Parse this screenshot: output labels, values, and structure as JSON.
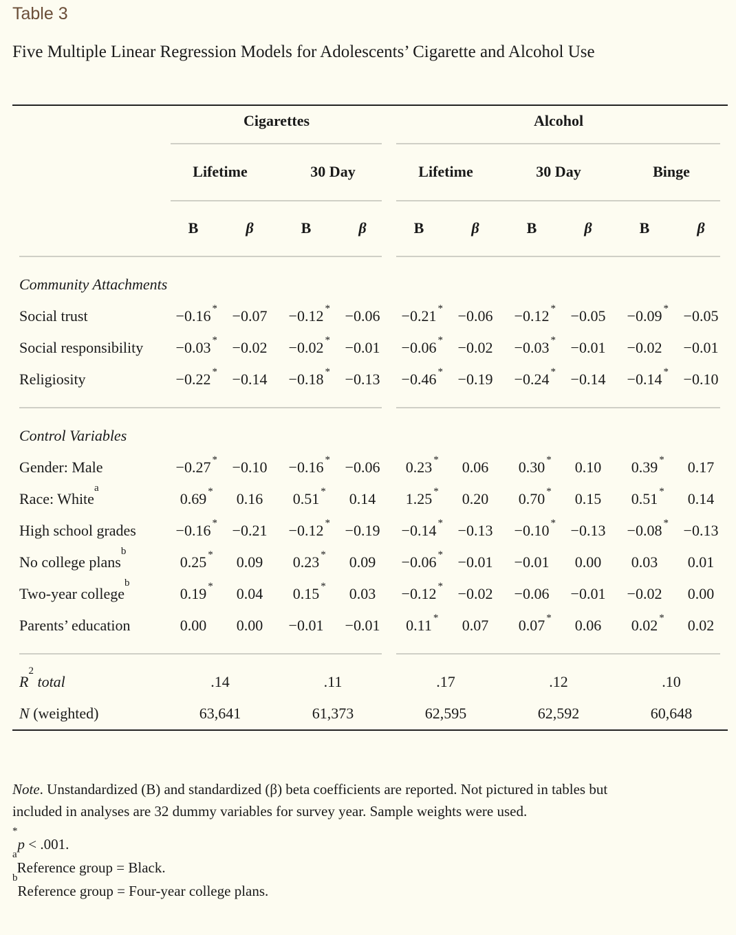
{
  "label": "Table 3",
  "title": "Five Multiple Linear Regression Models for Adolescents’ Cigarette and Alcohol Use",
  "groups": [
    "Cigarettes",
    "Alcohol"
  ],
  "outcomes": [
    "Lifetime",
    "30 Day",
    "Lifetime",
    "30 Day",
    "Binge"
  ],
  "coef_labels": [
    "B",
    "β"
  ],
  "sections": [
    {
      "title": "Community Attachments",
      "rows": [
        {
          "label": "Social trust",
          "sup": "",
          "cells": [
            {
              "v": "−0.16",
              "s": true
            },
            {
              "v": "−0.07",
              "s": false
            },
            {
              "v": "−0.12",
              "s": true
            },
            {
              "v": "−0.06",
              "s": false
            },
            {
              "v": "−0.21",
              "s": true
            },
            {
              "v": "−0.06",
              "s": false
            },
            {
              "v": "−0.12",
              "s": true
            },
            {
              "v": "−0.05",
              "s": false
            },
            {
              "v": "−0.09",
              "s": true
            },
            {
              "v": "−0.05",
              "s": false
            }
          ]
        },
        {
          "label": "Social responsibility",
          "sup": "",
          "cells": [
            {
              "v": "−0.03",
              "s": true
            },
            {
              "v": "−0.02",
              "s": false
            },
            {
              "v": "−0.02",
              "s": true
            },
            {
              "v": "−0.01",
              "s": false
            },
            {
              "v": "−0.06",
              "s": true
            },
            {
              "v": "−0.02",
              "s": false
            },
            {
              "v": "−0.03",
              "s": true
            },
            {
              "v": "−0.01",
              "s": false
            },
            {
              "v": "−0.02",
              "s": false
            },
            {
              "v": "−0.01",
              "s": false
            }
          ]
        },
        {
          "label": "Religiosity",
          "sup": "",
          "cells": [
            {
              "v": "−0.22",
              "s": true
            },
            {
              "v": "−0.14",
              "s": false
            },
            {
              "v": "−0.18",
              "s": true
            },
            {
              "v": "−0.13",
              "s": false
            },
            {
              "v": "−0.46",
              "s": true
            },
            {
              "v": "−0.19",
              "s": false
            },
            {
              "v": "−0.24",
              "s": true
            },
            {
              "v": "−0.14",
              "s": false
            },
            {
              "v": "−0.14",
              "s": true
            },
            {
              "v": "−0.10",
              "s": false
            }
          ]
        }
      ]
    },
    {
      "title": "Control Variables",
      "rows": [
        {
          "label": "Gender: Male",
          "sup": "",
          "cells": [
            {
              "v": "−0.27",
              "s": true
            },
            {
              "v": "−0.10",
              "s": false
            },
            {
              "v": "−0.16",
              "s": true
            },
            {
              "v": "−0.06",
              "s": false
            },
            {
              "v": "0.23",
              "s": true
            },
            {
              "v": "0.06",
              "s": false
            },
            {
              "v": "0.30",
              "s": true
            },
            {
              "v": "0.10",
              "s": false
            },
            {
              "v": "0.39",
              "s": true
            },
            {
              "v": "0.17",
              "s": false
            }
          ]
        },
        {
          "label": "Race: White",
          "sup": "a",
          "cells": [
            {
              "v": "0.69",
              "s": true
            },
            {
              "v": "0.16",
              "s": false
            },
            {
              "v": "0.51",
              "s": true
            },
            {
              "v": "0.14",
              "s": false
            },
            {
              "v": "1.25",
              "s": true
            },
            {
              "v": "0.20",
              "s": false
            },
            {
              "v": "0.70",
              "s": true
            },
            {
              "v": "0.15",
              "s": false
            },
            {
              "v": "0.51",
              "s": true
            },
            {
              "v": "0.14",
              "s": false
            }
          ]
        },
        {
          "label": "High school grades",
          "sup": "",
          "cells": [
            {
              "v": "−0.16",
              "s": true
            },
            {
              "v": "−0.21",
              "s": false
            },
            {
              "v": "−0.12",
              "s": true
            },
            {
              "v": "−0.19",
              "s": false
            },
            {
              "v": "−0.14",
              "s": true
            },
            {
              "v": "−0.13",
              "s": false
            },
            {
              "v": "−0.10",
              "s": true
            },
            {
              "v": "−0.13",
              "s": false
            },
            {
              "v": "−0.08",
              "s": true
            },
            {
              "v": "−0.13",
              "s": false
            }
          ]
        },
        {
          "label": "No college plans",
          "sup": "b",
          "cells": [
            {
              "v": "0.25",
              "s": true
            },
            {
              "v": "0.09",
              "s": false
            },
            {
              "v": "0.23",
              "s": true
            },
            {
              "v": "0.09",
              "s": false
            },
            {
              "v": "−0.06",
              "s": true
            },
            {
              "v": "−0.01",
              "s": false
            },
            {
              "v": "−0.01",
              "s": false
            },
            {
              "v": "0.00",
              "s": false
            },
            {
              "v": "0.03",
              "s": false
            },
            {
              "v": "0.01",
              "s": false
            }
          ]
        },
        {
          "label": "Two-year college",
          "sup": "b",
          "cells": [
            {
              "v": "0.19",
              "s": true
            },
            {
              "v": "0.04",
              "s": false
            },
            {
              "v": "0.15",
              "s": true
            },
            {
              "v": "0.03",
              "s": false
            },
            {
              "v": "−0.12",
              "s": true
            },
            {
              "v": "−0.02",
              "s": false
            },
            {
              "v": "−0.06",
              "s": false
            },
            {
              "v": "−0.01",
              "s": false
            },
            {
              "v": "−0.02",
              "s": false
            },
            {
              "v": "0.00",
              "s": false
            }
          ]
        },
        {
          "label": "Parents’ education",
          "sup": "",
          "cells": [
            {
              "v": "0.00",
              "s": false
            },
            {
              "v": "0.00",
              "s": false
            },
            {
              "v": "−0.01",
              "s": false
            },
            {
              "v": "−0.01",
              "s": false
            },
            {
              "v": "0.11",
              "s": true
            },
            {
              "v": "0.07",
              "s": false
            },
            {
              "v": "0.07",
              "s": true
            },
            {
              "v": "0.06",
              "s": false
            },
            {
              "v": "0.02",
              "s": true
            },
            {
              "v": "0.02",
              "s": false
            }
          ]
        }
      ]
    }
  ],
  "summary": [
    {
      "label_main": "R",
      "label_sup": "2",
      "label_rest": " total",
      "values": [
        ".14",
        ".11",
        ".17",
        ".12",
        ".10"
      ]
    },
    {
      "label_main": "N",
      "label_sup": "",
      "label_rest": " (weighted)",
      "values": [
        "63,641",
        "61,373",
        "62,595",
        "62,592",
        "60,648"
      ]
    }
  ],
  "note": {
    "lead": "Note",
    "line1": ". Unstandardized (B) and standardized (β) beta coefficients are reported. Not pictured in tables but",
    "line2": "included in analyses are 32 dummy variables for survey year. Sample weights were used.",
    "footnotes": [
      {
        "mark": "*",
        "text": "p",
        "rest": " < .001."
      },
      {
        "mark": "a",
        "text": "",
        "rest": "Reference group = Black."
      },
      {
        "mark": "b",
        "text": "",
        "rest": "Reference group = Four-year college plans."
      }
    ]
  }
}
